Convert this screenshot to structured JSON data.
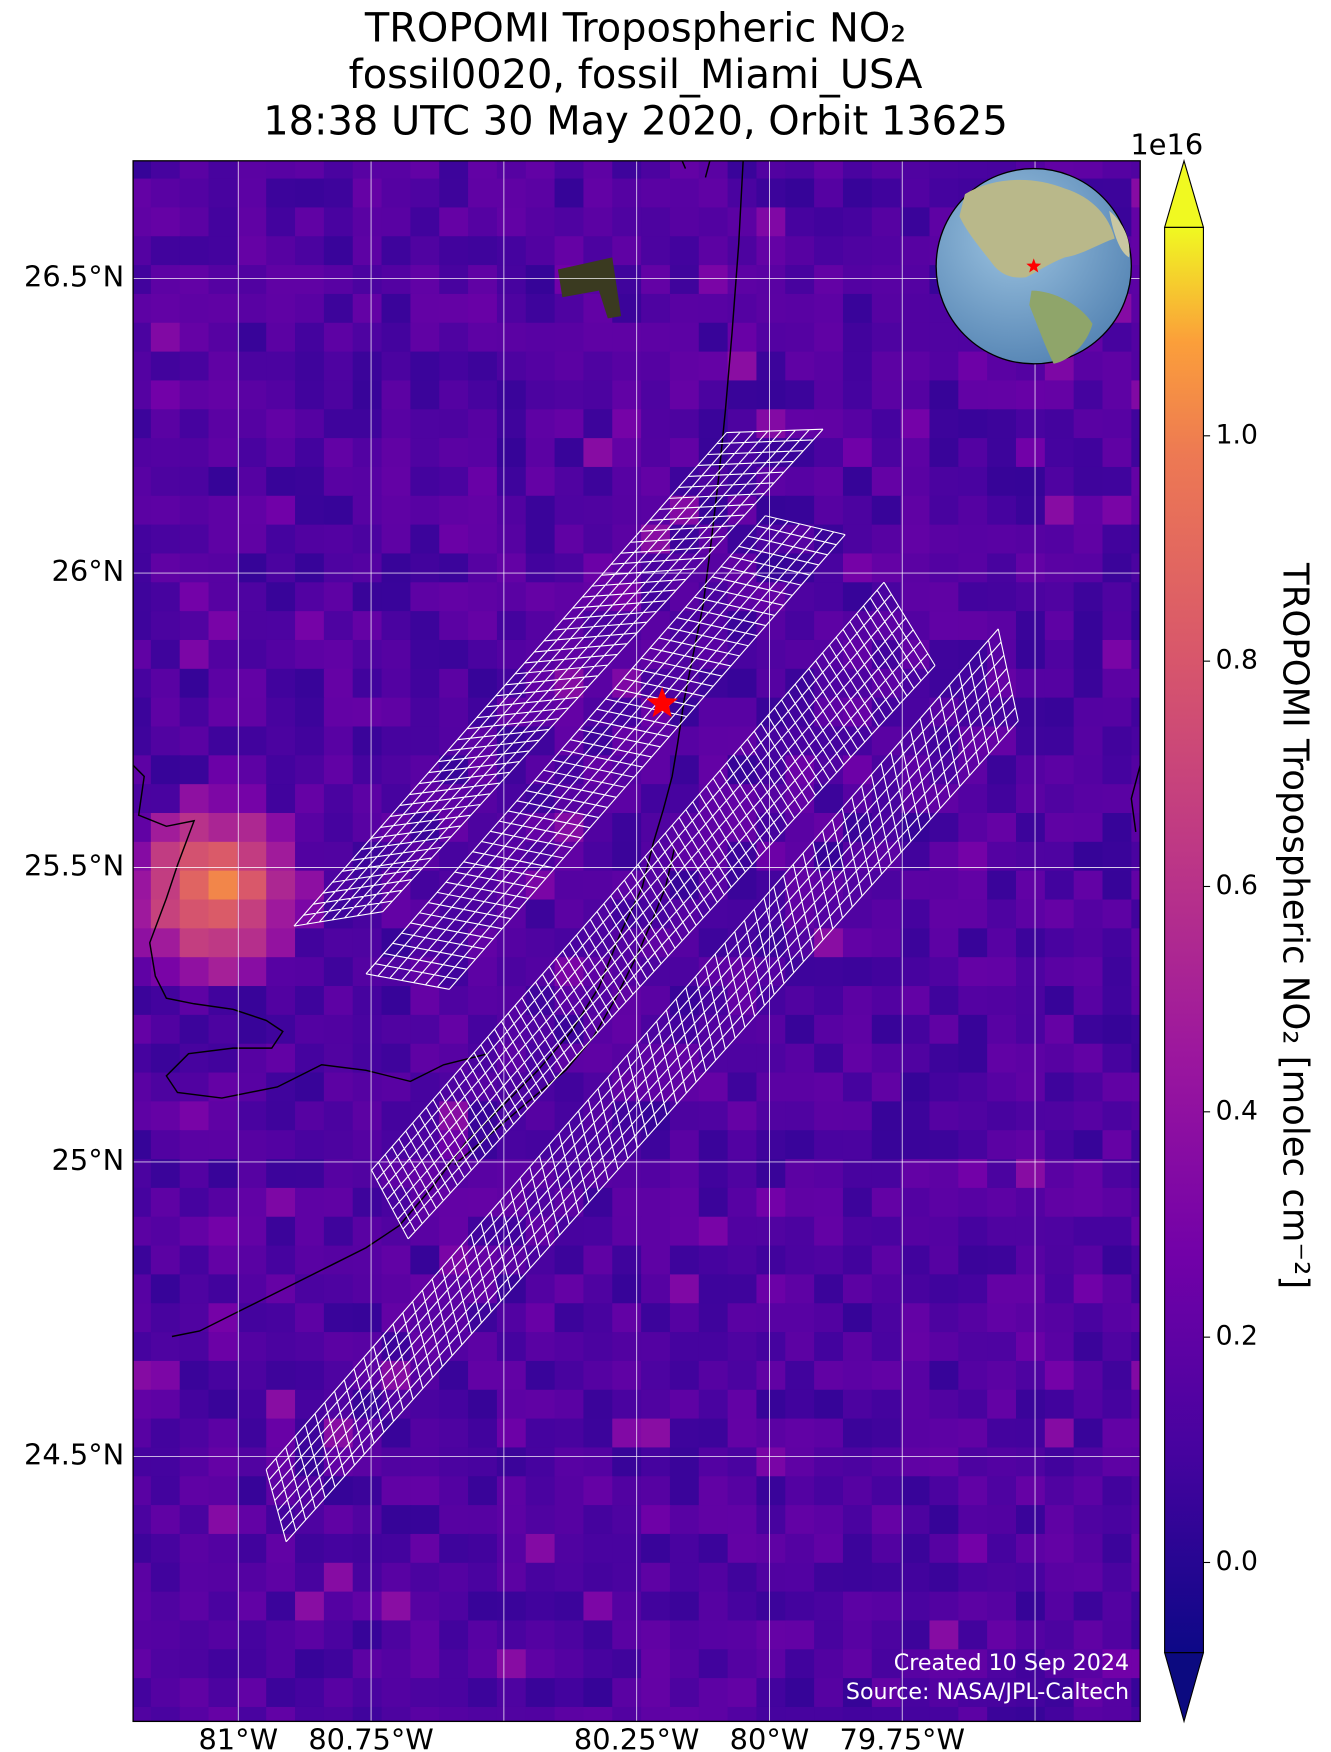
{
  "chart_data": {
    "type": "map",
    "title": [
      "TROPOMI Tropospheric NO₂",
      "fossil0020, fossil_Miami_USA",
      "18:38 UTC 30 May 2020, Orbit 13625"
    ],
    "xlim": [
      -81.198,
      -79.302
    ],
    "ylim": [
      24.05,
      26.7
    ],
    "xticks": [
      {
        "value": -81,
        "label": "81°W"
      },
      {
        "value": -80.75,
        "label": "80.75°W"
      },
      {
        "value": -80.5,
        "label": null
      },
      {
        "value": -80.25,
        "label": "80.25°W"
      },
      {
        "value": -80,
        "label": "80°W"
      },
      {
        "value": -79.75,
        "label": "79.75°W"
      },
      {
        "value": -79.5,
        "label": null
      }
    ],
    "yticks": [
      {
        "value": 24.5,
        "label": "24.5°N"
      },
      {
        "value": 25,
        "label": "25°N"
      },
      {
        "value": 25.5,
        "label": "25.5°N"
      },
      {
        "value": 26,
        "label": "26°N"
      },
      {
        "value": 26.5,
        "label": "26.5°N"
      }
    ],
    "grid": true,
    "target": {
      "lon": -80.202,
      "lat": 25.778,
      "color": "red"
    },
    "colorbar": {
      "label": "TROPOMI Tropospheric NO₂ [molec cm⁻²]",
      "offset_label": "1e16",
      "colormap": "plasma",
      "lim": [
        -0.08,
        1.185
      ],
      "ticks": [
        {
          "value": 0,
          "label": "0.0"
        },
        0.2,
        0.4,
        0.6,
        0.8,
        {
          "value": 1,
          "label": "1.0"
        }
      ]
    },
    "annotations": [
      "Created 10 Sep 2024",
      "Source: NASA/JPL-Caltech"
    ]
  }
}
